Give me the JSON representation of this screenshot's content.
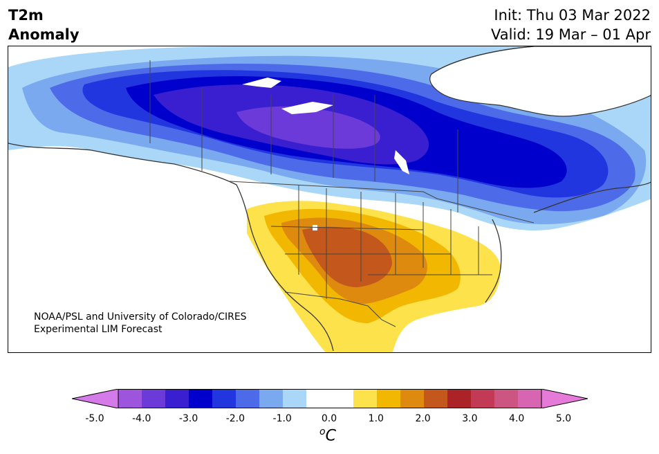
{
  "title": {
    "line1": "T2m",
    "line2": "Anomaly"
  },
  "init": "Init: Thu 03 Mar 2022",
  "valid": "Valid: 19 Mar – 01 Apr",
  "credit": {
    "line1": "NOAA/PSL and University of Colorado/CIRES",
    "line2": "Experimental LIM Forecast"
  },
  "colorbar": {
    "colors": [
      "#d57ae9",
      "#9d55de",
      "#6b3ad9",
      "#3a1fd0",
      "#0000cc",
      "#2236e0",
      "#4d6be8",
      "#7aa9f0",
      "#aad6f8",
      "#ffffff",
      "#ffffff",
      "#fee24b",
      "#f2b700",
      "#dd8a0e",
      "#c4571b",
      "#ab2227",
      "#c23a55",
      "#cd5581",
      "#d865b2",
      "#e57ad8"
    ],
    "tick_labels": [
      "-5.0",
      "-4.0",
      "-3.0",
      "-2.0",
      "-1.0",
      "0.0",
      "1.0",
      "2.0",
      "3.0",
      "4.0",
      "5.0"
    ],
    "unit_base": "C",
    "unit_sup": "o"
  }
}
